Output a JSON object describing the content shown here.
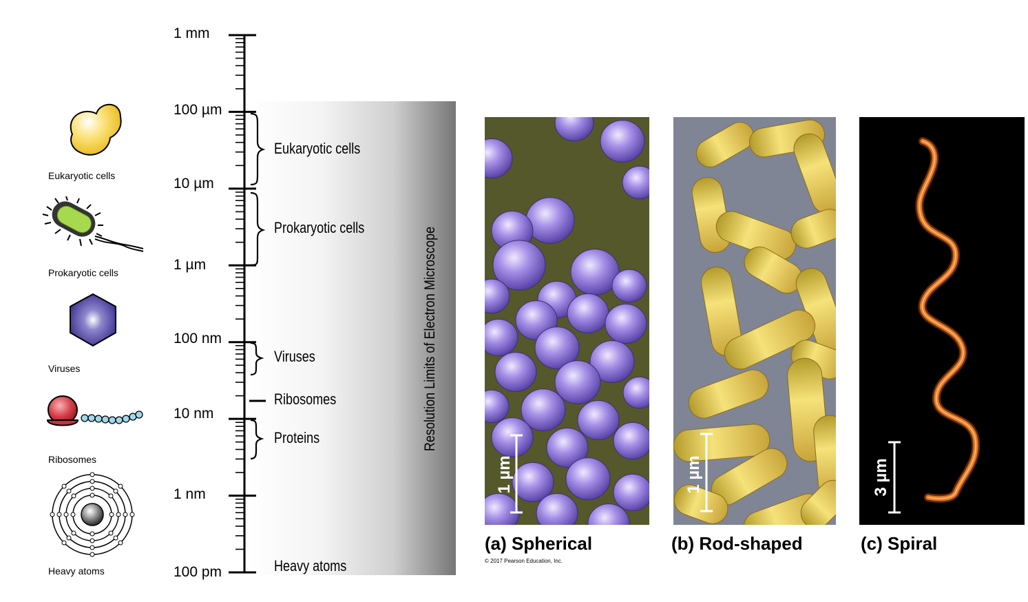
{
  "icons": {
    "eukaryotic": "Eukaryotic cells",
    "prokaryotic": "Prokaryotic cells",
    "viruses": "Viruses",
    "ribosomes": "Ribosomes",
    "heavy_atoms": "Heavy atoms"
  },
  "scale_ticks": [
    "1 mm",
    "100 µm",
    "10 µm",
    "1 µm",
    "100 nm",
    "10 nm",
    "1 nm",
    "100 pm"
  ],
  "ranges": {
    "eukaryotic": "Eukaryotic cells",
    "prokaryotic": "Prokaryotic cells",
    "viruses": "Viruses",
    "ribosomes": "Ribosomes",
    "proteins": "Proteins",
    "heavy_atoms": "Heavy atoms"
  },
  "band_label": "Resolution Limits of Electron Microscope",
  "panels": {
    "spherical": {
      "caption": "(a) Spherical",
      "scale": "1 µm"
    },
    "rod": {
      "caption": "(b) Rod-shaped",
      "scale": "1 µm"
    },
    "spiral": {
      "caption": "(c) Spiral",
      "scale": "3 µm"
    }
  },
  "copyright": "© 2017 Pearson Education, Inc.",
  "colors": {
    "eukaryote": "#f6d64a",
    "prokaryote": "#a6d94e",
    "virus": "#5b4fa8",
    "ribosome": "#c8333a",
    "coccus": "#8d76d8",
    "coccus_bg": "#5a5a2a",
    "bacillus": "#e6c84a",
    "bacillus_bg": "#8a8f9c",
    "spirochete": "#d2691e"
  }
}
